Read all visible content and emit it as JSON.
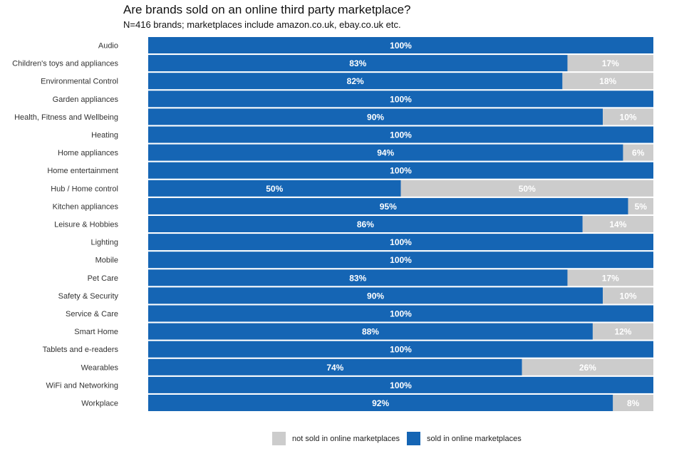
{
  "chart_data": {
    "type": "bar",
    "orientation": "horizontal",
    "stacked": true,
    "title": "Are brands sold on an online third party marketplace?",
    "subtitle": "N=416 brands; marketplaces include amazon.co.uk, ebay.co.uk etc.",
    "categories": [
      "Audio",
      "Children's toys and appliances",
      "Environmental Control",
      "Garden appliances",
      "Health, Fitness and Wellbeing",
      "Heating",
      "Home appliances",
      "Home entertainment",
      "Hub / Home control",
      "Kitchen appliances",
      "Leisure & Hobbies",
      "Lighting",
      "Mobile",
      "Pet Care",
      "Safety & Security",
      "Service & Care",
      "Smart Home",
      "Tablets and e-readers",
      "Wearables",
      "WiFi and Networking",
      "Workplace"
    ],
    "series": [
      {
        "name": "sold in online marketplaces",
        "color": "#1565b4",
        "values": [
          100,
          83,
          82,
          100,
          90,
          100,
          94,
          100,
          50,
          95,
          86,
          100,
          100,
          83,
          90,
          100,
          88,
          100,
          74,
          100,
          92
        ],
        "labels": [
          "100%",
          "83%",
          "82%",
          "100%",
          "90%",
          "100%",
          "94%",
          "100%",
          "50%",
          "95%",
          "86%",
          "100%",
          "100%",
          "83%",
          "90%",
          "100%",
          "88%",
          "100%",
          "74%",
          "100%",
          "92%"
        ]
      },
      {
        "name": "not sold in online marketplaces",
        "color": "#cccccc",
        "values": [
          0,
          17,
          18,
          0,
          10,
          0,
          6,
          0,
          50,
          5,
          14,
          0,
          0,
          17,
          10,
          0,
          12,
          0,
          26,
          0,
          8
        ],
        "labels": [
          "",
          "17%",
          "18%",
          "",
          "10%",
          "",
          "6%",
          "",
          "50%",
          "5%",
          "14%",
          "",
          "",
          "17%",
          "10%",
          "",
          "12%",
          "",
          "26%",
          "",
          "8%"
        ]
      }
    ],
    "xlim": [
      0,
      100
    ],
    "legend_position": "bottom",
    "legend_order": [
      "not sold in online marketplaces",
      "sold in online marketplaces"
    ]
  }
}
